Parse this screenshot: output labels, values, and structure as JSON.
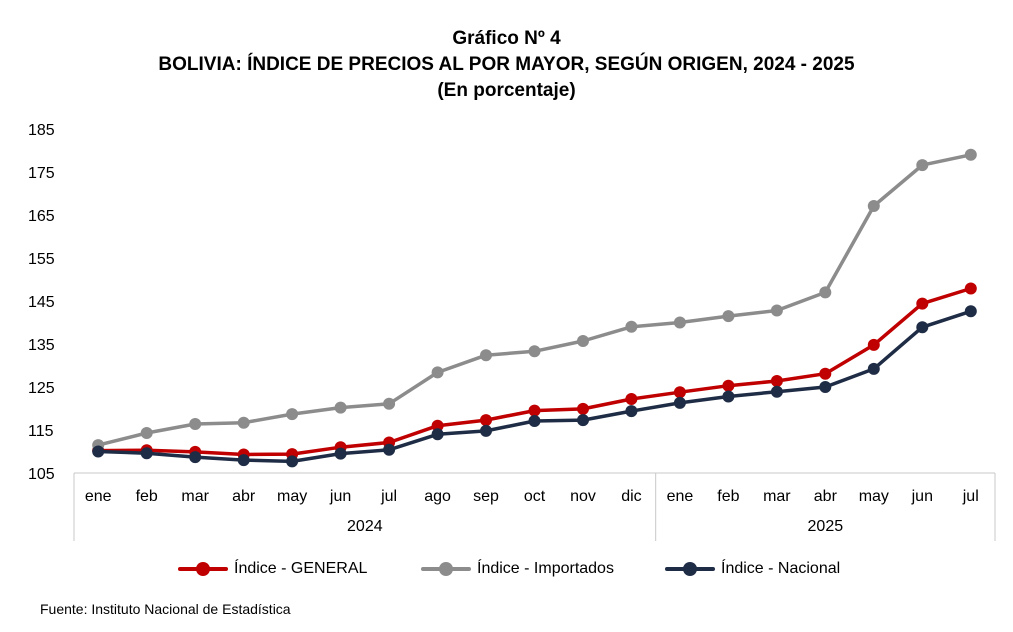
{
  "header": {
    "line1": "Gráfico Nº 4",
    "line2": "BOLIVIA: ÍNDICE DE PRECIOS AL POR MAYOR, SEGÚN ORIGEN, 2024 - 2025",
    "line3": "(En porcentaje)"
  },
  "source": "Fuente: Instituto Nacional de Estadística",
  "chart_data": {
    "type": "line",
    "categories": [
      "ene",
      "feb",
      "mar",
      "abr",
      "may",
      "jun",
      "jul",
      "ago",
      "sep",
      "oct",
      "nov",
      "dic",
      "ene",
      "feb",
      "mar",
      "abr",
      "may",
      "jun",
      "jul"
    ],
    "year_groups": [
      {
        "label": "2024",
        "span": 12
      },
      {
        "label": "2025",
        "span": 7
      }
    ],
    "ylim": [
      105,
      185
    ],
    "yticks": [
      105,
      115,
      125,
      135,
      145,
      155,
      165,
      175,
      185
    ],
    "grid": false,
    "legend_position": "bottom",
    "series": [
      {
        "name": "Índice - GENERAL",
        "color": "#C00000",
        "values": [
          110.2,
          110.3,
          109.9,
          109.3,
          109.4,
          111.0,
          112.1,
          116.0,
          117.3,
          119.5,
          119.9,
          122.2,
          123.8,
          125.3,
          126.4,
          128.1,
          134.8,
          144.4,
          147.9
        ]
      },
      {
        "name": "Índice - Importados",
        "color": "#8C8C8C",
        "values": [
          111.5,
          114.3,
          116.4,
          116.7,
          118.7,
          120.2,
          121.1,
          128.4,
          132.4,
          133.3,
          135.7,
          139.0,
          140.0,
          141.5,
          142.8,
          147.0,
          167.1,
          176.6,
          179.0
        ]
      },
      {
        "name": "Índice - Nacional",
        "color": "#1F2C45",
        "values": [
          110.0,
          109.6,
          108.7,
          108.0,
          107.7,
          109.5,
          110.4,
          114.0,
          114.8,
          117.1,
          117.3,
          119.4,
          121.3,
          122.8,
          123.9,
          125.0,
          129.2,
          138.9,
          142.6
        ]
      }
    ]
  }
}
